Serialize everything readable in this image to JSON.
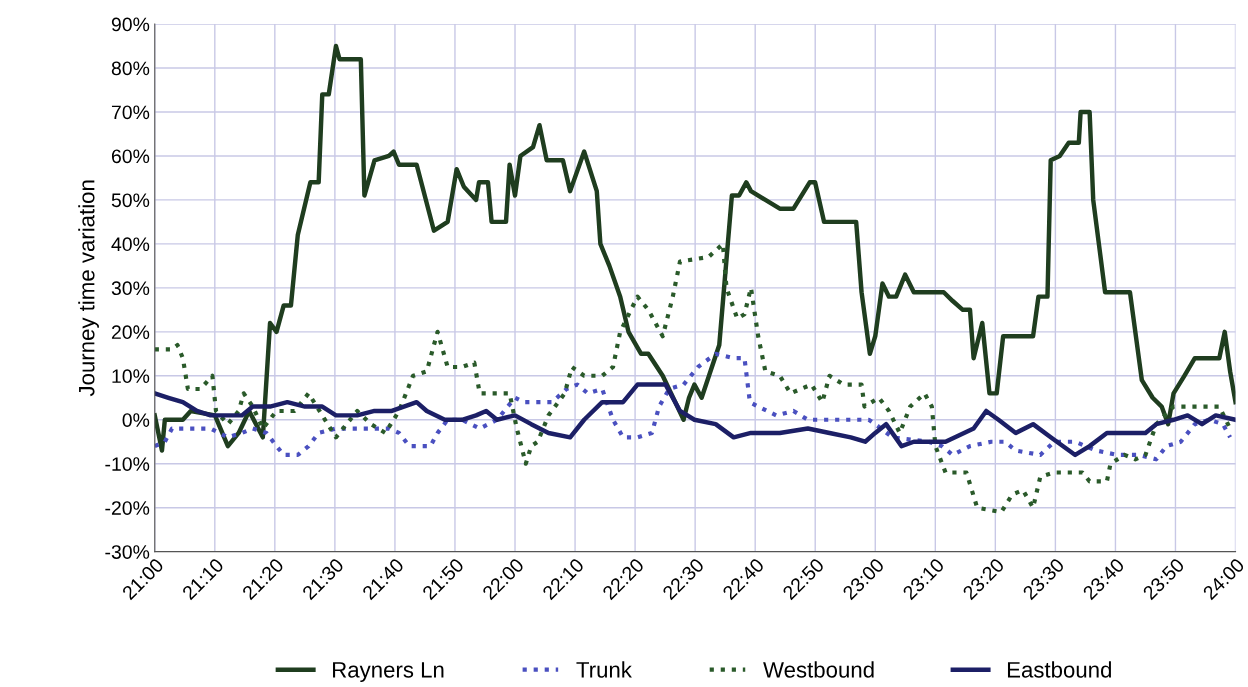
{
  "chart_data": {
    "type": "line",
    "ylabel": "Journey time variation",
    "xlim": [
      21,
      24
    ],
    "ylim": [
      -30,
      90
    ],
    "xticks": [
      {
        "value": 21,
        "label": "21:00"
      },
      {
        "value": 21.1667,
        "label": "21:10"
      },
      {
        "value": 21.3333,
        "label": "21:20"
      },
      {
        "value": 21.5,
        "label": "21:30"
      },
      {
        "value": 21.6667,
        "label": "21:40"
      },
      {
        "value": 21.8333,
        "label": "21:50"
      },
      {
        "value": 22,
        "label": "22:00"
      },
      {
        "value": 22.1667,
        "label": "22:10"
      },
      {
        "value": 22.3333,
        "label": "22:20"
      },
      {
        "value": 22.5,
        "label": "22:30"
      },
      {
        "value": 22.6667,
        "label": "22:40"
      },
      {
        "value": 22.8333,
        "label": "22:50"
      },
      {
        "value": 23,
        "label": "23:00"
      },
      {
        "value": 23.1667,
        "label": "23:10"
      },
      {
        "value": 23.3333,
        "label": "23:20"
      },
      {
        "value": 23.5,
        "label": "23:30"
      },
      {
        "value": 23.6667,
        "label": "23:40"
      },
      {
        "value": 23.8333,
        "label": "23:50"
      },
      {
        "value": 24,
        "label": "24:00"
      }
    ],
    "yticks": [
      {
        "value": -30,
        "label": "-30%"
      },
      {
        "value": -20,
        "label": "-20%"
      },
      {
        "value": -10,
        "label": "-10%"
      },
      {
        "value": 0,
        "label": "0%"
      },
      {
        "value": 10,
        "label": "10%"
      },
      {
        "value": 20,
        "label": "20%"
      },
      {
        "value": 30,
        "label": "30%"
      },
      {
        "value": 40,
        "label": "40%"
      },
      {
        "value": 50,
        "label": "50%"
      },
      {
        "value": 60,
        "label": "60%"
      },
      {
        "value": 70,
        "label": "70%"
      },
      {
        "value": 80,
        "label": "80%"
      },
      {
        "value": 90,
        "label": "90%"
      }
    ],
    "grid": true,
    "legend": "bottom",
    "marker": "none",
    "series": [
      {
        "name": "Rayners Ln",
        "color": "#1f3d1f",
        "line_style": "solid",
        "x": [
          21.0,
          21.02,
          21.028,
          21.078,
          21.1,
          21.167,
          21.203,
          21.233,
          21.262,
          21.3,
          21.32,
          21.338,
          21.358,
          21.378,
          21.397,
          21.432,
          21.455,
          21.465,
          21.483,
          21.503,
          21.513,
          21.572,
          21.582,
          21.61,
          21.65,
          21.663,
          21.678,
          21.727,
          21.775,
          21.813,
          21.838,
          21.858,
          21.892,
          21.9,
          21.925,
          21.935,
          21.975,
          21.985,
          22.0,
          22.015,
          22.05,
          22.068,
          22.088,
          22.133,
          22.153,
          22.192,
          22.227,
          22.237,
          22.262,
          22.292,
          22.315,
          22.35,
          22.37,
          22.41,
          22.468,
          22.483,
          22.498,
          22.518,
          22.567,
          22.602,
          22.622,
          22.642,
          22.655,
          22.695,
          22.735,
          22.773,
          22.818,
          22.833,
          22.858,
          22.947,
          22.962,
          22.985,
          23.0,
          23.02,
          23.038,
          23.058,
          23.083,
          23.107,
          23.19,
          23.215,
          23.243,
          23.263,
          23.273,
          23.297,
          23.317,
          23.337,
          23.355,
          23.438,
          23.453,
          23.478,
          23.487,
          23.512,
          23.537,
          23.565,
          23.57,
          23.595,
          23.605,
          23.638,
          23.707,
          23.74,
          23.77,
          23.795,
          23.813,
          23.828,
          23.858,
          23.887,
          23.955,
          23.97,
          23.985,
          24.0
        ],
        "values": [
          1,
          -7,
          0,
          0,
          2,
          1,
          -6,
          -3,
          2,
          -4,
          22,
          20,
          26,
          26,
          42,
          54,
          54,
          74,
          74,
          85,
          82,
          82,
          51,
          59,
          60,
          61,
          58,
          58,
          43,
          45,
          57,
          53,
          50,
          54,
          54,
          45,
          45,
          58,
          51,
          60,
          62,
          67,
          59,
          59,
          52,
          61,
          52,
          40,
          35,
          28,
          20,
          15,
          15,
          10,
          0,
          5,
          8,
          5,
          17,
          51,
          51,
          54,
          52,
          50,
          48,
          48,
          54,
          54,
          45,
          45,
          29,
          15,
          19,
          31,
          28,
          28,
          33,
          29,
          29,
          27,
          25,
          25,
          14,
          22,
          6,
          6,
          19,
          19,
          28,
          28,
          59,
          60,
          63,
          63,
          70,
          70,
          50,
          29,
          29,
          9,
          5,
          3,
          -1,
          6,
          10,
          14,
          14,
          20,
          11,
          4
        ]
      },
      {
        "name": "Trunk",
        "color": "#4a50c0",
        "line_style": "dotted",
        "x": [
          21.0,
          21.028,
          21.048,
          21.155,
          21.203,
          21.242,
          21.272,
          21.31,
          21.338,
          21.358,
          21.397,
          21.427,
          21.455,
          21.503,
          21.6,
          21.65,
          21.678,
          21.707,
          21.765,
          21.785,
          21.813,
          21.853,
          21.902,
          21.95,
          22.0,
          22.025,
          22.055,
          22.103,
          22.143,
          22.173,
          22.202,
          22.242,
          22.272,
          22.3,
          22.34,
          22.38,
          22.4,
          22.428,
          22.468,
          22.508,
          22.557,
          22.607,
          22.637,
          22.652,
          22.675,
          22.725,
          22.773,
          22.813,
          22.873,
          22.922,
          22.982,
          23.0,
          23.048,
          23.147,
          23.185,
          23.215,
          23.263,
          23.322,
          23.36,
          23.39,
          23.458,
          23.497,
          23.555,
          23.613,
          23.673,
          23.732,
          23.78,
          23.808,
          23.848,
          23.887,
          23.927,
          23.965,
          23.985
        ],
        "values": [
          -6,
          -5,
          -2,
          -2,
          -4,
          -3,
          -2,
          -3,
          -6,
          -8,
          -8,
          -6,
          -3,
          -2,
          -2,
          -2,
          -3,
          -6,
          -6,
          -3,
          0,
          0,
          -2,
          0,
          5,
          4,
          4,
          4,
          7,
          8,
          6,
          7,
          0,
          -4,
          -4,
          -3,
          3,
          7,
          8,
          12,
          15,
          14,
          14,
          4,
          3,
          1,
          2,
          0,
          0,
          0,
          0,
          -1,
          -4,
          -5,
          -6,
          -8,
          -6,
          -5,
          -5,
          -7,
          -8,
          -5,
          -5,
          -7,
          -8,
          -8,
          -9,
          -6,
          -5,
          -1,
          0,
          -1,
          -4
        ]
      },
      {
        "name": "Westbound",
        "color": "#2a5a2a",
        "line_style": "dotted",
        "x": [
          21.0,
          21.048,
          21.063,
          21.078,
          21.092,
          21.127,
          21.16,
          21.17,
          21.203,
          21.233,
          21.247,
          21.272,
          21.3,
          21.338,
          21.388,
          21.427,
          21.465,
          21.503,
          21.562,
          21.6,
          21.64,
          21.678,
          21.717,
          21.755,
          21.785,
          21.813,
          21.853,
          21.887,
          21.902,
          21.985,
          22.005,
          22.03,
          22.045,
          22.063,
          22.093,
          22.138,
          22.158,
          22.192,
          22.242,
          22.272,
          22.292,
          22.34,
          22.37,
          22.41,
          22.438,
          22.458,
          22.537,
          22.577,
          22.587,
          22.617,
          22.637,
          22.655,
          22.675,
          22.695,
          22.735,
          22.765,
          22.793,
          22.823,
          22.853,
          22.873,
          22.912,
          22.962,
          22.97,
          23.01,
          23.038,
          23.068,
          23.097,
          23.137,
          23.157,
          23.167,
          23.195,
          23.253,
          23.283,
          23.35,
          23.38,
          23.41,
          23.438,
          23.458,
          23.497,
          23.575,
          23.595,
          23.643,
          23.653,
          23.692,
          23.722,
          23.75,
          23.78,
          23.828,
          23.877,
          23.927,
          23.955,
          23.985
        ],
        "values": [
          16,
          16,
          17,
          14,
          7,
          7,
          10,
          2,
          -1,
          2,
          6,
          3,
          -2,
          2,
          2,
          6,
          1,
          -4,
          2,
          -1,
          -3,
          2,
          10,
          11,
          20,
          12,
          12,
          13,
          6,
          6,
          -2,
          -10,
          -6,
          -5,
          1,
          6,
          12,
          10,
          10,
          12,
          20,
          28,
          25,
          19,
          28,
          36,
          37,
          40,
          30,
          23,
          24,
          30,
          19,
          11,
          10,
          6,
          7,
          8,
          4,
          10,
          8,
          8,
          3,
          5,
          2,
          -3,
          3,
          6,
          3,
          -6,
          -12,
          -12,
          -20,
          -21,
          -17,
          -16,
          -20,
          -13,
          -12,
          -12,
          -14,
          -14,
          -10,
          -8,
          -9,
          -8,
          -1,
          3,
          3,
          3,
          3,
          -2
        ]
      },
      {
        "name": "Eastbound",
        "color": "#1c1f66",
        "line_style": "solid",
        "x": [
          21.0,
          21.038,
          21.078,
          21.117,
          21.155,
          21.242,
          21.272,
          21.32,
          21.368,
          21.417,
          21.465,
          21.503,
          21.562,
          21.61,
          21.658,
          21.727,
          21.755,
          21.805,
          21.853,
          21.892,
          21.92,
          21.95,
          22.0,
          22.045,
          22.093,
          22.153,
          22.192,
          22.242,
          22.3,
          22.34,
          22.38,
          22.418,
          22.458,
          22.498,
          22.557,
          22.607,
          22.655,
          22.735,
          22.813,
          22.873,
          22.932,
          22.972,
          23.0,
          23.03,
          23.073,
          23.107,
          23.195,
          23.273,
          23.308,
          23.342,
          23.39,
          23.438,
          23.487,
          23.555,
          23.595,
          23.643,
          23.712,
          23.75,
          23.78,
          23.828,
          23.867,
          23.907,
          23.945,
          24.0
        ],
        "values": [
          6,
          5,
          4,
          2,
          1,
          1,
          3,
          3,
          4,
          3,
          3,
          1,
          1,
          2,
          2,
          4,
          2,
          0,
          0,
          1,
          2,
          0,
          1,
          -1,
          -3,
          -4,
          0,
          4,
          4,
          8,
          8,
          8,
          2,
          0,
          -1,
          -4,
          -3,
          -3,
          -2,
          -3,
          -4,
          -5,
          -3,
          -1,
          -6,
          -5,
          -5,
          -2,
          2,
          0,
          -3,
          -1,
          -4,
          -8,
          -6,
          -3,
          -3,
          -3,
          -1,
          0,
          1,
          -1,
          1,
          0
        ]
      }
    ]
  }
}
